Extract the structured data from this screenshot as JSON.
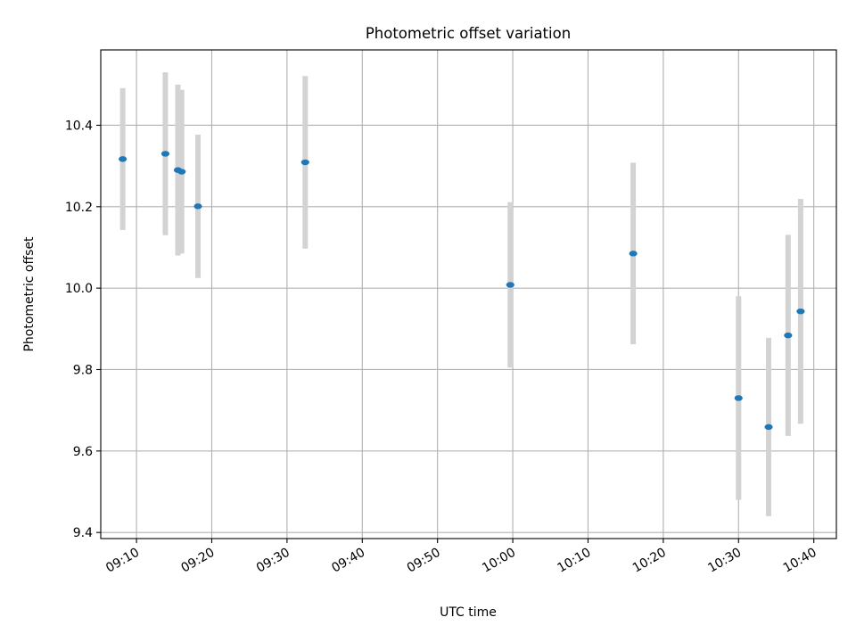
{
  "chart_data": {
    "type": "scatter",
    "title": "Photometric offset variation",
    "xlabel": "UTC time",
    "ylabel": "Photometric offset",
    "xlim": [
      "09:05:15",
      "10:43:00"
    ],
    "ylim": [
      9.385,
      10.585
    ],
    "x_ticks": [
      "09:10",
      "09:20",
      "09:30",
      "09:40",
      "09:50",
      "10:00",
      "10:10",
      "10:20",
      "10:30",
      "10:40"
    ],
    "y_ticks": [
      9.4,
      9.6,
      9.8,
      10.0,
      10.2,
      10.4
    ],
    "grid": true,
    "legend": "none",
    "colors": {
      "point": "#1f77b4",
      "error_bar": "#d3d3d3"
    },
    "series": [
      {
        "points": [
          {
            "x": "09:08:10",
            "y": 10.317,
            "err_low": 10.143,
            "err_high": 10.491
          },
          {
            "x": "09:13:50",
            "y": 10.33,
            "err_low": 10.13,
            "err_high": 10.53
          },
          {
            "x": "09:15:30",
            "y": 10.29,
            "err_low": 10.08,
            "err_high": 10.5
          },
          {
            "x": "09:16:00",
            "y": 10.286,
            "err_low": 10.085,
            "err_high": 10.487
          },
          {
            "x": "09:18:10",
            "y": 10.201,
            "err_low": 10.025,
            "err_high": 10.377
          },
          {
            "x": "09:32:25",
            "y": 10.309,
            "err_low": 10.097,
            "err_high": 10.521
          },
          {
            "x": "09:59:40",
            "y": 10.008,
            "err_low": 9.805,
            "err_high": 10.211
          },
          {
            "x": "10:16:00",
            "y": 10.085,
            "err_low": 9.862,
            "err_high": 10.308
          },
          {
            "x": "10:30:00",
            "y": 9.73,
            "err_low": 9.48,
            "err_high": 9.98
          },
          {
            "x": "10:34:00",
            "y": 9.659,
            "err_low": 9.44,
            "err_high": 9.878
          },
          {
            "x": "10:36:35",
            "y": 9.884,
            "err_low": 9.637,
            "err_high": 10.131
          },
          {
            "x": "10:38:15",
            "y": 9.943,
            "err_low": 9.667,
            "err_high": 10.219
          }
        ]
      }
    ]
  }
}
